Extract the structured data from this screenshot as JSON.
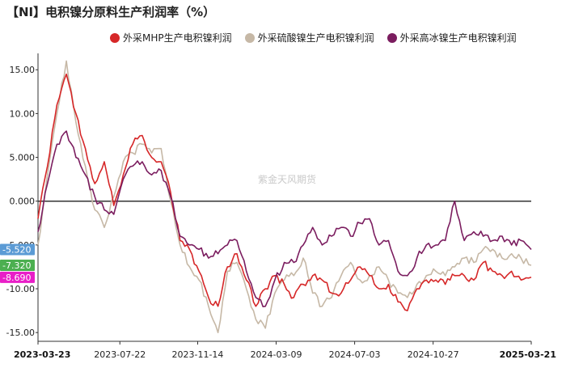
{
  "title": "【NI】电积镍分原料生产利润率（%）",
  "watermark": "紫金天风期货",
  "chart_data": {
    "type": "line",
    "title": "【NI】电积镍分原料生产利润率（%）",
    "ylim": [
      -16,
      16.5
    ],
    "yticks": [
      "15.00",
      "10.00",
      "5.000",
      "0.000",
      "-5.000",
      "-10.00",
      "-15.00"
    ],
    "ytick_values": [
      15,
      10,
      5,
      0,
      -5,
      -10,
      -15
    ],
    "xticks": [
      "2023-03-23",
      "2023-07-22",
      "2023-11-14",
      "2024-03-09",
      "2024-07-03",
      "2024-10-27",
      "2025-03-21"
    ],
    "x_range": [
      "2023-03-23",
      "2025-03-21"
    ],
    "grid": false,
    "legend": "top",
    "x": [
      "2023-03-23",
      "2023-04-06",
      "2023-04-20",
      "2023-05-04",
      "2023-05-18",
      "2023-06-01",
      "2023-06-15",
      "2023-06-29",
      "2023-07-13",
      "2023-07-27",
      "2023-08-10",
      "2023-08-24",
      "2023-09-07",
      "2023-09-21",
      "2023-10-05",
      "2023-10-19",
      "2023-11-02",
      "2023-11-16",
      "2023-11-30",
      "2023-12-14",
      "2023-12-28",
      "2024-01-11",
      "2024-01-25",
      "2024-02-08",
      "2024-02-22",
      "2024-03-07",
      "2024-03-21",
      "2024-04-04",
      "2024-04-18",
      "2024-05-02",
      "2024-05-16",
      "2024-05-30",
      "2024-06-13",
      "2024-06-27",
      "2024-07-11",
      "2024-07-25",
      "2024-08-08",
      "2024-08-22",
      "2024-09-05",
      "2024-09-19",
      "2024-10-03",
      "2024-10-17",
      "2024-10-31",
      "2024-11-14",
      "2024-11-28",
      "2024-12-12",
      "2024-12-26",
      "2025-01-09",
      "2025-01-23",
      "2025-02-06",
      "2025-02-20",
      "2025-03-06",
      "2025-03-21"
    ],
    "series": [
      {
        "name": "外采MHP生产电积镍利润",
        "color": "#d62728",
        "end_value": -8.69,
        "values": [
          -2.0,
          4.0,
          11.0,
          14.5,
          10.0,
          6.0,
          2.0,
          4.5,
          -0.5,
          3.0,
          6.5,
          7.5,
          5.0,
          4.5,
          1.0,
          -4.5,
          -5.5,
          -8.0,
          -11.0,
          -12.0,
          -7.5,
          -6.0,
          -9.0,
          -12.0,
          -10.0,
          -8.5,
          -9.5,
          -11.0,
          -9.5,
          -8.5,
          -9.0,
          -10.5,
          -10.5,
          -9.0,
          -7.5,
          -8.5,
          -10.0,
          -9.5,
          -11.5,
          -12.5,
          -10.0,
          -9.0,
          -9.0,
          -9.5,
          -8.5,
          -8.5,
          -9.0,
          -7.0,
          -8.0,
          -8.5,
          -8.0,
          -9.0,
          -8.69
        ]
      },
      {
        "name": "外采硫酸镍生产电积镍利润",
        "color": "#c6b8a6",
        "end_value": -7.32,
        "values": [
          -5.0,
          3.0,
          10.0,
          16.0,
          9.0,
          4.0,
          -1.0,
          -3.0,
          0.5,
          4.5,
          5.5,
          6.5,
          5.5,
          6.0,
          0.0,
          -5.0,
          -7.5,
          -9.0,
          -12.0,
          -15.0,
          -8.0,
          -7.0,
          -10.0,
          -13.5,
          -14.5,
          -10.5,
          -9.0,
          -8.5,
          -6.5,
          -10.5,
          -12.0,
          -11.0,
          -8.5,
          -7.0,
          -9.0,
          -8.5,
          -7.5,
          -9.0,
          -10.5,
          -11.0,
          -9.5,
          -8.5,
          -8.0,
          -8.5,
          -7.5,
          -6.5,
          -7.0,
          -5.5,
          -5.5,
          -6.5,
          -6.0,
          -6.5,
          -7.32
        ]
      },
      {
        "name": "外采高冰镍生产电积镍利润",
        "color": "#7b1d5f",
        "end_value": -5.52,
        "values": [
          -3.5,
          2.0,
          6.5,
          8.0,
          5.0,
          3.0,
          0.5,
          -1.0,
          -1.5,
          2.5,
          4.0,
          4.5,
          3.0,
          3.5,
          0.5,
          -4.0,
          -5.0,
          -5.5,
          -6.5,
          -6.0,
          -5.0,
          -4.5,
          -8.0,
          -11.0,
          -12.0,
          -9.0,
          -7.0,
          -7.0,
          -5.0,
          -3.0,
          -5.0,
          -4.0,
          -3.0,
          -4.0,
          -2.5,
          -2.0,
          -5.0,
          -4.5,
          -8.0,
          -8.5,
          -6.5,
          -5.0,
          -5.0,
          -4.5,
          0.0,
          -4.5,
          -3.5,
          -4.0,
          -4.5,
          -4.0,
          -5.0,
          -4.5,
          -5.52
        ]
      }
    ],
    "end_badges": [
      "-5.520",
      "-7.320",
      "-8.690"
    ],
    "badge_colors": [
      "#5b9bd5",
      "#4caf50",
      "#e91ec8"
    ]
  }
}
